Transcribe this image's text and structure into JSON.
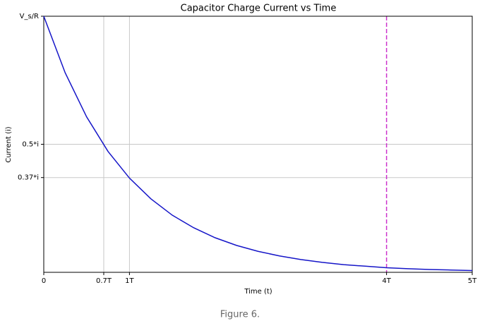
{
  "chart_data": {
    "type": "line",
    "title": "Capacitor Charge Current vs Time",
    "x_label": "Time (t)",
    "y_label": "Current (i)",
    "x": [
      0,
      0.25,
      0.5,
      0.75,
      1,
      1.25,
      1.5,
      1.75,
      2,
      2.25,
      2.5,
      2.75,
      3,
      3.25,
      3.5,
      3.75,
      4,
      4.25,
      4.5,
      4.75,
      5
    ],
    "series": [
      {
        "color": "#1515c8",
        "values": [
          1,
          0.779,
          0.607,
          0.472,
          0.368,
          0.287,
          0.223,
          0.174,
          0.135,
          0.105,
          0.082,
          0.064,
          0.05,
          0.039,
          0.03,
          0.024,
          0.018,
          0.014,
          0.011,
          0.009,
          0.007
        ]
      }
    ],
    "xlim": [
      0,
      5
    ],
    "ylim": [
      0,
      1
    ],
    "xticks": [
      0,
      {
        "value": 0.7,
        "label": "0.7T"
      },
      {
        "value": 1,
        "label": "1T"
      },
      {
        "value": 4,
        "label": "4T"
      },
      {
        "value": 5,
        "label": "5T"
      }
    ],
    "yticks": [
      {
        "value": 0.37,
        "label": "0.37*i"
      },
      {
        "value": 0.5,
        "label": "0.5*i"
      },
      {
        "value": 1,
        "label": "V_s/R"
      }
    ],
    "vlines": [
      0.7,
      1
    ],
    "hlines": [
      0.5,
      0.37
    ],
    "grid_color": "#c8c8c8",
    "dashed_vline": {
      "x": 4,
      "color": "#cc33cc"
    },
    "caption": "Figure 6."
  }
}
